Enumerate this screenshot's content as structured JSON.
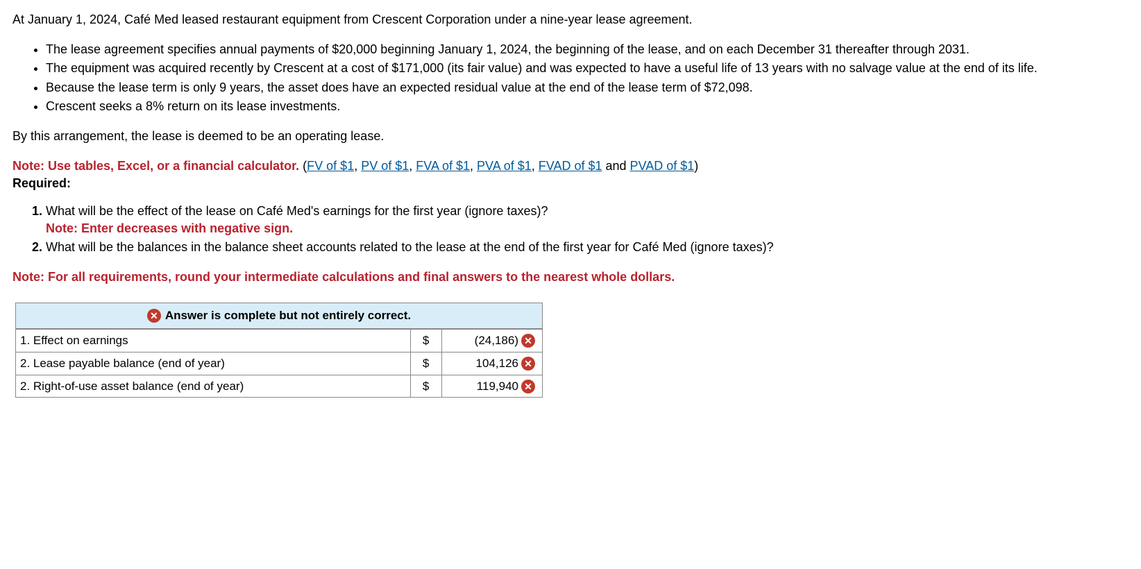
{
  "intro": "At January 1, 2024, Café Med leased restaurant equipment from Crescent Corporation under a nine-year lease agreement.",
  "bullets": [
    "The lease agreement specifies annual payments of $20,000 beginning January 1, 2024, the beginning of the lease, and on each December 31 thereafter through 2031.",
    "The equipment was acquired recently by Crescent at a cost of $171,000 (its fair value) and was expected to have a useful life of 13 years with no salvage value at the end of its life.",
    "Because the lease term is only 9 years, the asset does have an expected residual value at the end of the lease term of $72,098.",
    "Crescent seeks a 8% return on its lease investments."
  ],
  "after_bullets": "By this arrangement, the lease is deemed to be an operating lease.",
  "note_prefix": "Note: Use tables, Excel, or a financial calculator. ",
  "note_paren_open": "(",
  "links": {
    "fv": "FV of $1",
    "pv": "PV of $1",
    "fva": "FVA of $1",
    "pva": "PVA of $1",
    "fvad": "FVAD of $1",
    "pvad": "PVAD of $1"
  },
  "and_word": " and ",
  "sep": ", ",
  "note_paren_close": ")",
  "required_label": "Required:",
  "questions": {
    "q1": "What will be the effect of the lease on Café Med's earnings for the first year (ignore taxes)?",
    "q1_note": "Note: Enter decreases with negative sign.",
    "q2": "What will be the balances in the balance sheet accounts related to the lease at the end of the first year for Café Med (ignore taxes)?"
  },
  "footer_note": "Note: For all requirements, round your intermediate calculations and final answers to the nearest whole dollars.",
  "feedback_banner": "Answer is complete but not entirely correct.",
  "answers": {
    "row1": {
      "label": "1. Effect on earnings",
      "currency": "$",
      "value": "(24,186)"
    },
    "row2": {
      "label": "2. Lease payable balance (end of year)",
      "currency": "$",
      "value": "104,126"
    },
    "row3": {
      "label": "2. Right-of-use asset balance (end of year)",
      "currency": "$",
      "value": "119,940"
    }
  },
  "icons": {
    "x": "✕"
  },
  "colors": {
    "banner_bg": "#d8edf8",
    "error_bg": "#c0392b",
    "link": "#005a9c",
    "note_red": "#b8232f"
  }
}
